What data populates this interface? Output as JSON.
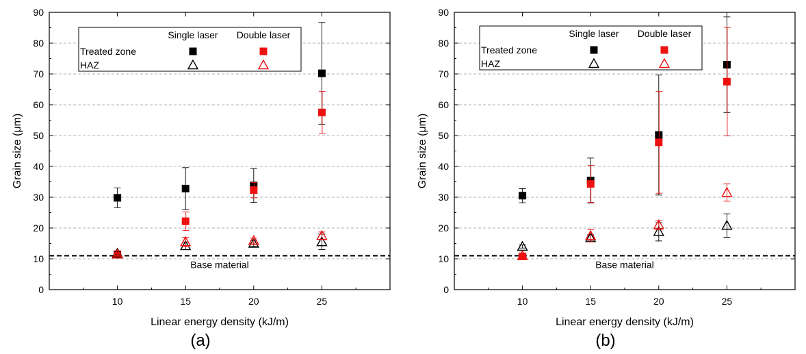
{
  "chart_data": [
    {
      "type": "scatter",
      "panel_label": "(a)",
      "xlabel": "Linear energy density (kJ/m)",
      "ylabel": "Grain size (μm)",
      "x": [
        10,
        15,
        20,
        25
      ],
      "xticks": [
        "10",
        "15",
        "20",
        "25"
      ],
      "xlim": [
        5,
        30
      ],
      "ylim": [
        0,
        90
      ],
      "yticks": [
        "0",
        "10",
        "20",
        "30",
        "40",
        "50",
        "60",
        "70",
        "80",
        "90"
      ],
      "grid": "horizontal dashed",
      "legend": {
        "placement": "top-left",
        "col_headers": [
          "Single laser",
          "Double laser"
        ],
        "rows": [
          "Treated zone",
          "HAZ"
        ]
      },
      "reference_line": {
        "label": "Base material",
        "y": 11
      },
      "series": [
        {
          "name": "Treated zone",
          "laser": "Single laser",
          "marker": "filled-square",
          "color": "#000000",
          "values": [
            29.8,
            32.8,
            33.8,
            70.2
          ],
          "errors": [
            3.2,
            6.8,
            5.5,
            16.5
          ]
        },
        {
          "name": "Treated zone",
          "laser": "Double laser",
          "marker": "filled-square",
          "color": "#ee1111",
          "values": [
            11.5,
            22.2,
            32.3,
            57.5
          ],
          "errors": [
            0.8,
            3.0,
            2.5,
            6.8
          ]
        },
        {
          "name": "HAZ",
          "laser": "Single laser",
          "marker": "open-triangle",
          "color": "#000000",
          "values": [
            11.8,
            14.2,
            15.0,
            15.5
          ],
          "errors": [
            0.5,
            1.2,
            1.0,
            2.5
          ]
        },
        {
          "name": "HAZ",
          "laser": "Double laser",
          "marker": "open-triangle",
          "color": "#ee1111",
          "values": [
            11.5,
            15.5,
            15.9,
            17.5
          ],
          "errors": [
            0.5,
            1.5,
            0.8,
            1.2
          ]
        }
      ]
    },
    {
      "type": "scatter",
      "panel_label": "(b)",
      "xlabel": "Linear energy density (kJ/m)",
      "ylabel": "Grain size (μm)",
      "x": [
        10,
        15,
        20,
        25
      ],
      "xticks": [
        "10",
        "15",
        "20",
        "25"
      ],
      "xlim": [
        5,
        30
      ],
      "ylim": [
        0,
        90
      ],
      "yticks": [
        "0",
        "10",
        "20",
        "30",
        "40",
        "50",
        "60",
        "70",
        "80",
        "90"
      ],
      "grid": "horizontal dashed",
      "legend": {
        "placement": "top-left",
        "col_headers": [
          "Single laser",
          "Double laser"
        ],
        "rows": [
          "Treated zone",
          "HAZ"
        ]
      },
      "reference_line": {
        "label": "Base material",
        "y": 11
      },
      "series": [
        {
          "name": "Treated zone",
          "laser": "Single laser",
          "marker": "filled-square",
          "color": "#000000",
          "values": [
            30.5,
            35.4,
            50.2,
            73.0
          ],
          "errors": [
            2.3,
            7.3,
            19.5,
            15.5
          ]
        },
        {
          "name": "Treated zone",
          "laser": "Double laser",
          "marker": "filled-square",
          "color": "#ee1111",
          "values": [
            10.8,
            34.3,
            47.8,
            67.5
          ],
          "errors": [
            0.8,
            6.0,
            16.5,
            17.6
          ]
        },
        {
          "name": "HAZ",
          "laser": "Single laser",
          "marker": "open-triangle",
          "color": "#000000",
          "values": [
            14.0,
            16.8,
            18.8,
            20.8
          ],
          "errors": [
            0.5,
            1.0,
            3.0,
            3.8
          ]
        },
        {
          "name": "HAZ",
          "laser": "Double laser",
          "marker": "open-triangle",
          "color": "#ee1111",
          "values": [
            11.0,
            17.5,
            21.0,
            31.5
          ],
          "errors": [
            0.5,
            2.0,
            1.5,
            2.8
          ]
        }
      ]
    }
  ]
}
